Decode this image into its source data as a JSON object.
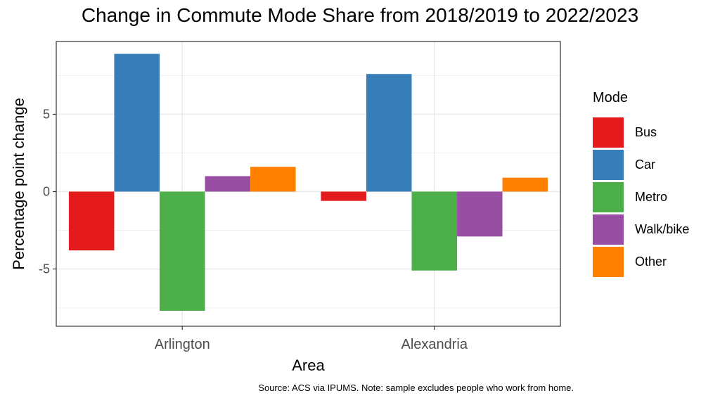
{
  "chart_data": {
    "type": "bar",
    "title": "Change in Commute Mode Share from 2018/2019 to 2022/2023",
    "xlabel": "Area",
    "ylabel": "Percentage point change",
    "categories": [
      "Arlington",
      "Alexandria"
    ],
    "series": [
      {
        "name": "Bus",
        "color": "#e41a1c",
        "values": [
          -3.8,
          -0.6
        ]
      },
      {
        "name": "Car",
        "color": "#377eb8",
        "values": [
          8.9,
          7.6
        ]
      },
      {
        "name": "Metro",
        "color": "#4daf4a",
        "values": [
          -7.7,
          -5.1
        ]
      },
      {
        "name": "Walk/bike",
        "color": "#984ea3",
        "values": [
          1.0,
          -2.9
        ]
      },
      {
        "name": "Other",
        "color": "#ff7f00",
        "values": [
          1.6,
          0.9
        ]
      }
    ],
    "ylim": [
      -8.7,
      9.7
    ],
    "yticks": [
      -5,
      0,
      5
    ],
    "ytick_labels": [
      "-5",
      "0",
      "5"
    ],
    "grid": true,
    "legend_title": "Mode",
    "legend_position": "right",
    "caption": "Source: ACS via IPUMS. Note: sample excludes people who work from home."
  }
}
